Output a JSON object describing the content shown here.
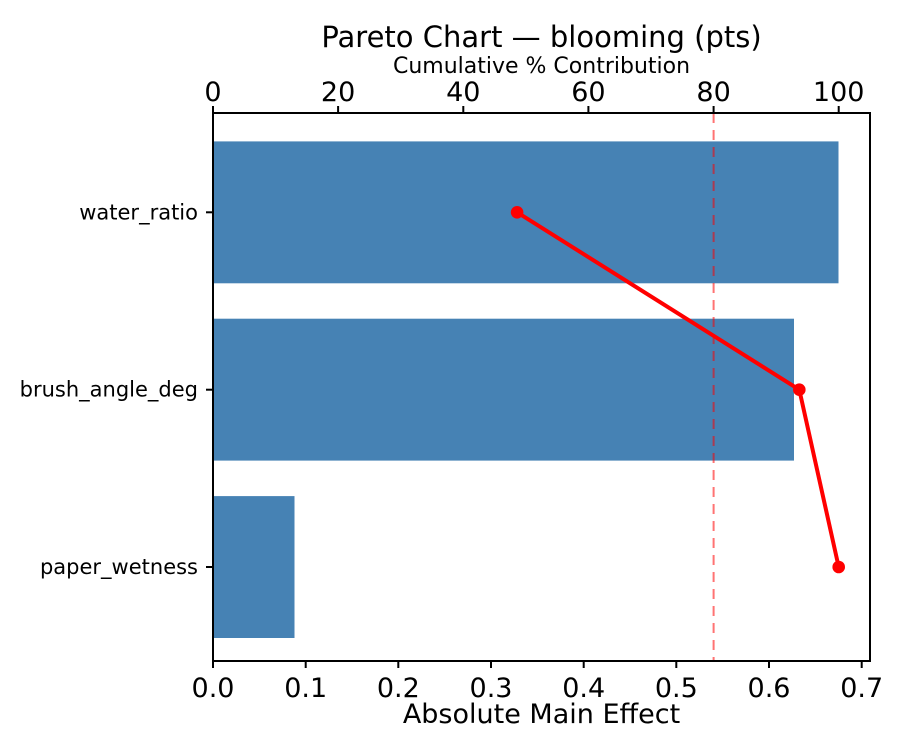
{
  "chart_data": {
    "type": "bar",
    "subtype": "pareto",
    "orientation": "horizontal",
    "title": "Pareto Chart — blooming (pts)",
    "categories": [
      "water_ratio",
      "brush_angle_deg",
      "paper_wetness"
    ],
    "series": [
      {
        "name": "Absolute Main Effect",
        "type": "bar",
        "values": [
          0.675,
          0.627,
          0.088
        ]
      },
      {
        "name": "Cumulative % Contribution",
        "type": "line",
        "values": [
          48.6,
          93.7,
          100.0
        ]
      }
    ],
    "threshold_pct": 80,
    "bottom_axis": {
      "label": "Absolute Main Effect",
      "range": [
        0,
        0.709
      ],
      "ticks": [
        {
          "v": 0.0,
          "label": "0.0"
        },
        {
          "v": 0.1,
          "label": "0.1"
        },
        {
          "v": 0.2,
          "label": "0.2"
        },
        {
          "v": 0.3,
          "label": "0.3"
        },
        {
          "v": 0.4,
          "label": "0.4"
        },
        {
          "v": 0.5,
          "label": "0.5"
        },
        {
          "v": 0.6,
          "label": "0.6"
        },
        {
          "v": 0.7,
          "label": "0.7"
        }
      ]
    },
    "top_axis": {
      "label": "Cumulative % Contribution",
      "range": [
        0,
        105
      ],
      "ticks": [
        {
          "v": 0,
          "label": "0"
        },
        {
          "v": 20,
          "label": "20"
        },
        {
          "v": 40,
          "label": "40"
        },
        {
          "v": 60,
          "label": "60"
        },
        {
          "v": 80,
          "label": "80"
        },
        {
          "v": 100,
          "label": "100"
        }
      ]
    },
    "ylim": [
      -0.53,
      2.56
    ],
    "bar_rel_height": 0.8,
    "grid": false,
    "legend": null
  },
  "colors": {
    "bar": "#4682B4",
    "cumulative_line": "#FF0000",
    "threshold_line": "#FF0000",
    "threshold_opacity": 0.55,
    "axis": "#000000",
    "text": "#000000",
    "background": "#FFFFFF"
  }
}
